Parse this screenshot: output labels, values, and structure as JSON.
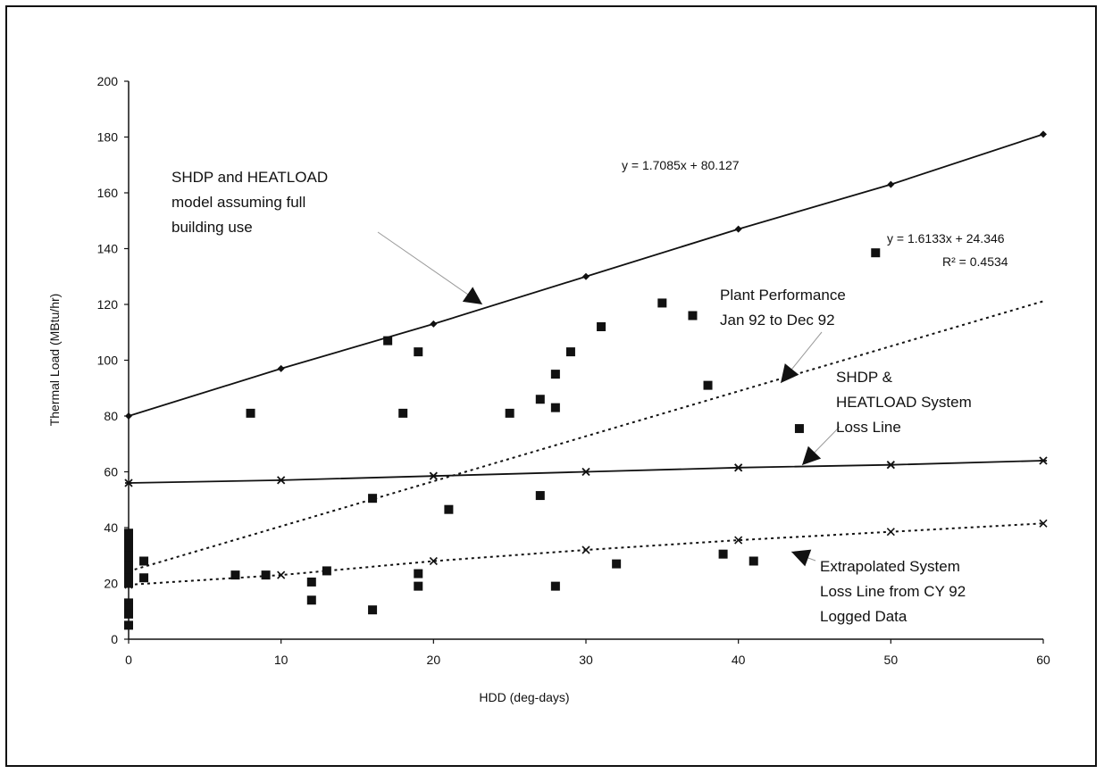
{
  "chart_data": {
    "type": "scatter",
    "title": "",
    "xlabel": "HDD (deg-days)",
    "ylabel": "Thermal Load (MBtu/hr)",
    "xlim": [
      0,
      60
    ],
    "ylim": [
      0,
      200
    ],
    "x_ticks": [
      0,
      10,
      20,
      30,
      40,
      50,
      60
    ],
    "y_ticks": [
      0,
      20,
      40,
      60,
      80,
      100,
      120,
      140,
      160,
      180,
      200
    ],
    "grid": false,
    "legend": "none",
    "series": [
      {
        "name": "SHDP and HEATLOAD model assuming full building use",
        "kind": "line",
        "style": "solid",
        "marker": "diamond",
        "points": [
          [
            0,
            80
          ],
          [
            10,
            97
          ],
          [
            20,
            113
          ],
          [
            30,
            130
          ],
          [
            40,
            147
          ],
          [
            50,
            163
          ],
          [
            60,
            181
          ]
        ]
      },
      {
        "name": "SHDP & HEATLOAD System Loss Line",
        "kind": "line",
        "style": "solid",
        "marker": "asterisk",
        "points": [
          [
            0,
            56
          ],
          [
            10,
            57
          ],
          [
            20,
            58.5
          ],
          [
            30,
            60
          ],
          [
            40,
            61.5
          ],
          [
            50,
            62.5
          ],
          [
            60,
            64
          ]
        ]
      },
      {
        "name": "Extrapolated System Loss Line from CY 92 Logged Data",
        "kind": "line",
        "style": "dotted",
        "marker": "x",
        "points": [
          [
            0,
            19.5
          ],
          [
            10,
            23
          ],
          [
            20,
            28
          ],
          [
            30,
            32
          ],
          [
            40,
            35.5
          ],
          [
            50,
            38.5
          ],
          [
            60,
            41.5
          ]
        ]
      },
      {
        "name": "Plant Performance Jan 92 to Dec 92",
        "kind": "scatter",
        "marker": "square",
        "points": [
          [
            0,
            38
          ],
          [
            0,
            36
          ],
          [
            0,
            34
          ],
          [
            0,
            32
          ],
          [
            0,
            30
          ],
          [
            0,
            28
          ],
          [
            0,
            26
          ],
          [
            0,
            24
          ],
          [
            0,
            22
          ],
          [
            0,
            20
          ],
          [
            0,
            13
          ],
          [
            0,
            11
          ],
          [
            0,
            9
          ],
          [
            0,
            5
          ],
          [
            1,
            28
          ],
          [
            1,
            22
          ],
          [
            7,
            23
          ],
          [
            8,
            81
          ],
          [
            9,
            23
          ],
          [
            12,
            20.5
          ],
          [
            12,
            14
          ],
          [
            13,
            24.5
          ],
          [
            16,
            10.5
          ],
          [
            16,
            50.5
          ],
          [
            17,
            107
          ],
          [
            18,
            81
          ],
          [
            19,
            103
          ],
          [
            19,
            23.5
          ],
          [
            19,
            19
          ],
          [
            21,
            46.5
          ],
          [
            25,
            81
          ],
          [
            27,
            86
          ],
          [
            27,
            51.5
          ],
          [
            28,
            95
          ],
          [
            28,
            83
          ],
          [
            28,
            19
          ],
          [
            29,
            103
          ],
          [
            31,
            112
          ],
          [
            32,
            27
          ],
          [
            35,
            120.5
          ],
          [
            37,
            116
          ],
          [
            38,
            91
          ],
          [
            39,
            30.5
          ],
          [
            41,
            28
          ],
          [
            44,
            75.5
          ],
          [
            49,
            138.5
          ]
        ]
      },
      {
        "name": "Plant Performance trend",
        "kind": "line",
        "style": "dotted",
        "marker": "none",
        "points": [
          [
            0,
            24.346
          ],
          [
            60,
            121.144
          ]
        ]
      }
    ],
    "annotations": [
      {
        "text": "y = 1.7085x + 80.127"
      },
      {
        "text": "y = 1.6133x + 24.346"
      },
      {
        "text": "R² = 0.4534"
      },
      {
        "text": "SHDP and HEATLOAD model assuming full building use",
        "lines": [
          "SHDP and HEATLOAD",
          "model assuming full",
          "building use"
        ]
      },
      {
        "text": "Plant Performance Jan 92 to Dec 92",
        "lines": [
          "Plant Performance",
          "Jan 92 to Dec 92"
        ]
      },
      {
        "text": "SHDP & HEATLOAD System Loss Line",
        "lines": [
          "SHDP &",
          "HEATLOAD System",
          "Loss Line"
        ]
      },
      {
        "text": "Extrapolated System Loss Line from CY 92 Logged Data",
        "lines": [
          "Extrapolated System",
          "Loss Line from CY 92",
          "Logged Data"
        ]
      }
    ]
  }
}
